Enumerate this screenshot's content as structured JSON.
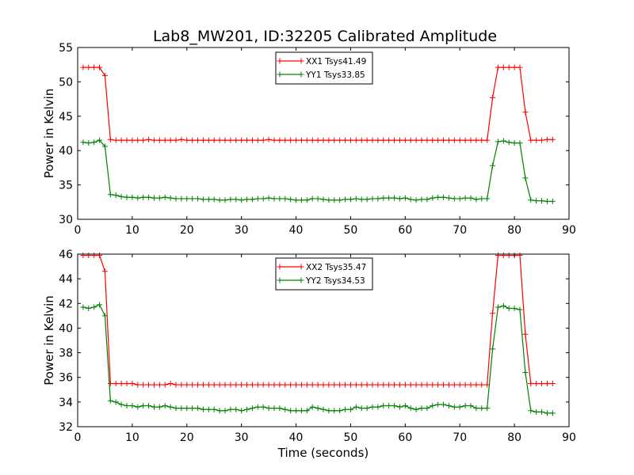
{
  "title": "Lab8_MW201, ID:32205 Calibrated Amplitude",
  "chart_data": [
    {
      "type": "line",
      "ylabel": "Power in Kelvin",
      "xlabel": "",
      "xlim": [
        0,
        90
      ],
      "ylim": [
        30,
        55
      ],
      "xticks": [
        "0",
        "10",
        "20",
        "30",
        "40",
        "50",
        "60",
        "70",
        "80",
        "90"
      ],
      "yticks": [
        "30",
        "35",
        "40",
        "45",
        "50",
        "55"
      ],
      "legend_position": "top-center",
      "series": [
        {
          "name": "XX1 Tsys41.49",
          "color": "#ff0000",
          "x": [
            1,
            2,
            3,
            4,
            5,
            6,
            7,
            8,
            9,
            10,
            11,
            12,
            13,
            14,
            15,
            16,
            17,
            18,
            19,
            20,
            21,
            22,
            23,
            24,
            25,
            26,
            27,
            28,
            29,
            30,
            31,
            32,
            33,
            34,
            35,
            36,
            37,
            38,
            39,
            40,
            41,
            42,
            43,
            44,
            45,
            46,
            47,
            48,
            49,
            50,
            51,
            52,
            53,
            54,
            55,
            56,
            57,
            58,
            59,
            60,
            61,
            62,
            63,
            64,
            65,
            66,
            67,
            68,
            69,
            70,
            71,
            72,
            73,
            74,
            75,
            76,
            77,
            78,
            79,
            80,
            81,
            82,
            83,
            84,
            85,
            86,
            87
          ],
          "y": [
            52.1,
            52.1,
            52.1,
            52.1,
            50.9,
            41.6,
            41.5,
            41.5,
            41.5,
            41.5,
            41.5,
            41.5,
            41.6,
            41.5,
            41.5,
            41.5,
            41.5,
            41.5,
            41.6,
            41.5,
            41.5,
            41.5,
            41.5,
            41.5,
            41.5,
            41.5,
            41.5,
            41.5,
            41.5,
            41.5,
            41.5,
            41.5,
            41.5,
            41.5,
            41.6,
            41.5,
            41.5,
            41.5,
            41.5,
            41.5,
            41.5,
            41.5,
            41.5,
            41.5,
            41.5,
            41.5,
            41.5,
            41.5,
            41.5,
            41.5,
            41.5,
            41.5,
            41.5,
            41.5,
            41.5,
            41.5,
            41.5,
            41.5,
            41.5,
            41.5,
            41.5,
            41.5,
            41.5,
            41.5,
            41.5,
            41.5,
            41.5,
            41.5,
            41.5,
            41.5,
            41.5,
            41.5,
            41.5,
            41.5,
            41.5,
            47.7,
            52.1,
            52.1,
            52.1,
            52.1,
            52.1,
            45.6,
            41.5,
            41.5,
            41.5,
            41.6,
            41.6
          ]
        },
        {
          "name": "YY1 Tsys33.85",
          "color": "#008000",
          "x": [
            1,
            2,
            3,
            4,
            5,
            6,
            7,
            8,
            9,
            10,
            11,
            12,
            13,
            14,
            15,
            16,
            17,
            18,
            19,
            20,
            21,
            22,
            23,
            24,
            25,
            26,
            27,
            28,
            29,
            30,
            31,
            32,
            33,
            34,
            35,
            36,
            37,
            38,
            39,
            40,
            41,
            42,
            43,
            44,
            45,
            46,
            47,
            48,
            49,
            50,
            51,
            52,
            53,
            54,
            55,
            56,
            57,
            58,
            59,
            60,
            61,
            62,
            63,
            64,
            65,
            66,
            67,
            68,
            69,
            70,
            71,
            72,
            73,
            74,
            75,
            76,
            77,
            78,
            79,
            80,
            81,
            82,
            83,
            84,
            85,
            86,
            87
          ],
          "y": [
            41.2,
            41.1,
            41.2,
            41.5,
            40.6,
            33.6,
            33.5,
            33.3,
            33.2,
            33.2,
            33.1,
            33.2,
            33.2,
            33.1,
            33.1,
            33.2,
            33.1,
            33.0,
            33.0,
            33.0,
            33.0,
            33.0,
            32.9,
            32.9,
            32.9,
            32.8,
            32.8,
            32.9,
            32.9,
            32.8,
            32.9,
            32.9,
            33.0,
            33.0,
            33.1,
            33.0,
            33.0,
            33.0,
            32.9,
            32.8,
            32.8,
            32.8,
            33.0,
            33.0,
            32.9,
            32.8,
            32.8,
            32.8,
            32.9,
            32.9,
            33.0,
            32.9,
            32.9,
            33.0,
            33.0,
            33.1,
            33.1,
            33.1,
            33.0,
            33.1,
            32.9,
            32.8,
            32.9,
            32.9,
            33.1,
            33.2,
            33.2,
            33.1,
            33.0,
            33.0,
            33.1,
            33.1,
            32.9,
            33.0,
            33.0,
            37.8,
            41.3,
            41.4,
            41.2,
            41.1,
            41.1,
            36.0,
            32.8,
            32.7,
            32.7,
            32.6,
            32.6
          ]
        }
      ]
    },
    {
      "type": "line",
      "ylabel": "Power in Kelvin",
      "xlabel": "Time (seconds)",
      "xlim": [
        0,
        90
      ],
      "ylim": [
        32,
        46
      ],
      "xticks": [
        "0",
        "10",
        "20",
        "30",
        "40",
        "50",
        "60",
        "70",
        "80",
        "90"
      ],
      "yticks": [
        "32",
        "34",
        "36",
        "38",
        "40",
        "42",
        "44",
        "46"
      ],
      "legend_position": "top-center",
      "series": [
        {
          "name": "XX2 Tsys35.47",
          "color": "#ff0000",
          "x": [
            1,
            2,
            3,
            4,
            5,
            6,
            7,
            8,
            9,
            10,
            11,
            12,
            13,
            14,
            15,
            16,
            17,
            18,
            19,
            20,
            21,
            22,
            23,
            24,
            25,
            26,
            27,
            28,
            29,
            30,
            31,
            32,
            33,
            34,
            35,
            36,
            37,
            38,
            39,
            40,
            41,
            42,
            43,
            44,
            45,
            46,
            47,
            48,
            49,
            50,
            51,
            52,
            53,
            54,
            55,
            56,
            57,
            58,
            59,
            60,
            61,
            62,
            63,
            64,
            65,
            66,
            67,
            68,
            69,
            70,
            71,
            72,
            73,
            74,
            75,
            76,
            77,
            78,
            79,
            80,
            81,
            82,
            83,
            84,
            85,
            86,
            87
          ],
          "y": [
            45.9,
            45.9,
            45.9,
            45.9,
            44.6,
            35.5,
            35.5,
            35.5,
            35.5,
            35.5,
            35.4,
            35.4,
            35.4,
            35.4,
            35.4,
            35.4,
            35.5,
            35.4,
            35.4,
            35.4,
            35.4,
            35.4,
            35.4,
            35.4,
            35.4,
            35.4,
            35.4,
            35.4,
            35.4,
            35.4,
            35.4,
            35.4,
            35.4,
            35.4,
            35.4,
            35.4,
            35.4,
            35.4,
            35.4,
            35.4,
            35.4,
            35.4,
            35.4,
            35.4,
            35.4,
            35.4,
            35.4,
            35.4,
            35.4,
            35.4,
            35.4,
            35.4,
            35.4,
            35.4,
            35.4,
            35.4,
            35.4,
            35.4,
            35.4,
            35.4,
            35.4,
            35.4,
            35.4,
            35.4,
            35.4,
            35.4,
            35.4,
            35.4,
            35.4,
            35.4,
            35.4,
            35.4,
            35.4,
            35.4,
            35.4,
            41.2,
            45.9,
            45.9,
            45.9,
            45.9,
            45.9,
            39.5,
            35.5,
            35.5,
            35.5,
            35.5,
            35.5
          ]
        },
        {
          "name": "YY2 Tsys34.53",
          "color": "#008000",
          "x": [
            1,
            2,
            3,
            4,
            5,
            6,
            7,
            8,
            9,
            10,
            11,
            12,
            13,
            14,
            15,
            16,
            17,
            18,
            19,
            20,
            21,
            22,
            23,
            24,
            25,
            26,
            27,
            28,
            29,
            30,
            31,
            32,
            33,
            34,
            35,
            36,
            37,
            38,
            39,
            40,
            41,
            42,
            43,
            44,
            45,
            46,
            47,
            48,
            49,
            50,
            51,
            52,
            53,
            54,
            55,
            56,
            57,
            58,
            59,
            60,
            61,
            62,
            63,
            64,
            65,
            66,
            67,
            68,
            69,
            70,
            71,
            72,
            73,
            74,
            75,
            76,
            77,
            78,
            79,
            80,
            81,
            82,
            83,
            84,
            85,
            86,
            87
          ],
          "y": [
            41.7,
            41.6,
            41.7,
            41.9,
            41.0,
            34.1,
            34.0,
            33.8,
            33.7,
            33.7,
            33.6,
            33.7,
            33.7,
            33.6,
            33.6,
            33.7,
            33.6,
            33.5,
            33.5,
            33.5,
            33.5,
            33.5,
            33.4,
            33.4,
            33.4,
            33.3,
            33.3,
            33.4,
            33.4,
            33.3,
            33.4,
            33.5,
            33.6,
            33.6,
            33.5,
            33.5,
            33.5,
            33.4,
            33.3,
            33.3,
            33.3,
            33.3,
            33.6,
            33.5,
            33.4,
            33.3,
            33.3,
            33.3,
            33.4,
            33.4,
            33.6,
            33.5,
            33.5,
            33.6,
            33.6,
            33.7,
            33.7,
            33.7,
            33.6,
            33.7,
            33.5,
            33.4,
            33.5,
            33.5,
            33.7,
            33.8,
            33.8,
            33.7,
            33.6,
            33.6,
            33.7,
            33.7,
            33.5,
            33.5,
            33.5,
            38.3,
            41.7,
            41.8,
            41.6,
            41.6,
            41.5,
            36.4,
            33.3,
            33.2,
            33.2,
            33.1,
            33.1
          ]
        }
      ]
    }
  ]
}
